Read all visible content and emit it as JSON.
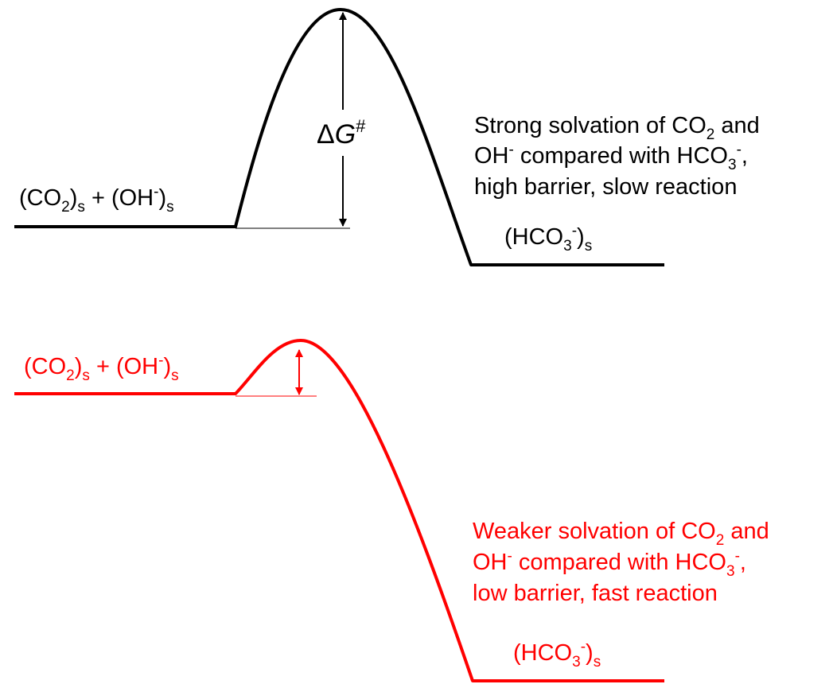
{
  "colors": {
    "slow": "#000000",
    "fast": "#ff0000"
  },
  "slow_profile": {
    "reactant": {
      "a": "(CO",
      "a_sub": "2",
      "b": ")",
      "b_sub": "s",
      "c": " + (OH",
      "c_sup": "-",
      "d": ")",
      "d_sub": "s"
    },
    "product": {
      "a": "(HCO",
      "a_sub": "3",
      "a_sup": "-",
      "b": ")",
      "b_sub": "s"
    },
    "barrier": {
      "delta": "Δ",
      "g": "G",
      "sup": "#"
    },
    "note": {
      "line1": {
        "a": "Strong solvation of CO",
        "a_sub": "2",
        "b": " and"
      },
      "line2": {
        "a": "OH",
        "a_sup": "-",
        "b": " compared with HCO",
        "b_sub": "3",
        "b_sup": "-",
        "c": ","
      },
      "line3": "high barrier, slow reaction"
    }
  },
  "fast_profile": {
    "reactant": {
      "a": "(CO",
      "a_sub": "2",
      "b": ")",
      "b_sub": "s",
      "c": " + (OH",
      "c_sup": "-",
      "d": ")",
      "d_sub": "s"
    },
    "product": {
      "a": "(HCO",
      "a_sub": "3",
      "a_sup": "-",
      "b": ")",
      "b_sub": "s"
    },
    "note": {
      "line1": {
        "a": "Weaker solvation of CO",
        "a_sub": "2",
        "b": " and"
      },
      "line2": {
        "a": "OH",
        "a_sup": "-",
        "b": " compared with HCO",
        "b_sub": "3",
        "b_sup": "-",
        "c": ","
      },
      "line3": "low barrier, fast reaction"
    }
  }
}
